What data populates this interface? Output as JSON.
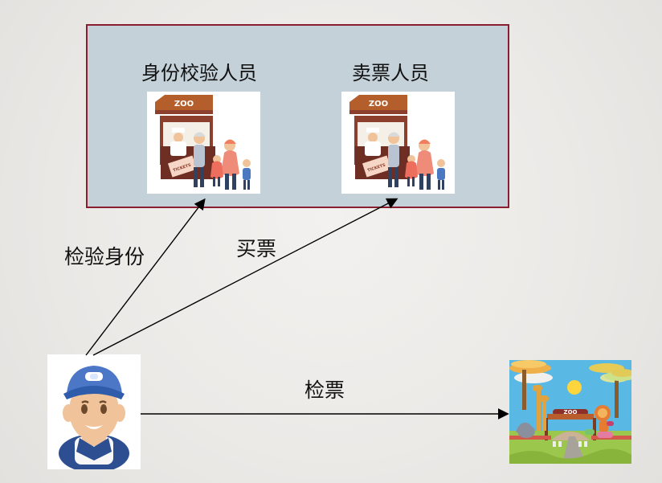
{
  "diagram": {
    "group": {
      "labels": {
        "verifier": "身份校验人员",
        "seller": "卖票人员"
      }
    },
    "edges": [
      {
        "label": "检验身份"
      },
      {
        "label": "买票"
      },
      {
        "label": "检票"
      }
    ],
    "images": {
      "booth_sign": "ZOO",
      "booth_tickets": "TICKETS",
      "zoo_sign": "ZOO"
    },
    "colors": {
      "background": "#eceae7",
      "group_fill": "#c4d1d9",
      "group_border": "#8b1d31",
      "arrow": "#000000",
      "sky": "#5ab8e4",
      "grass": "#9bc84c",
      "ticket": "#f6d6c6",
      "booth_wood": "#8d3f2d",
      "booth_sign_bg": "#b45f2b"
    },
    "icons": {
      "booth": "ticket-booth-icon",
      "worker": "staff-person-icon",
      "zoo": "zoo-entrance-icon"
    }
  }
}
